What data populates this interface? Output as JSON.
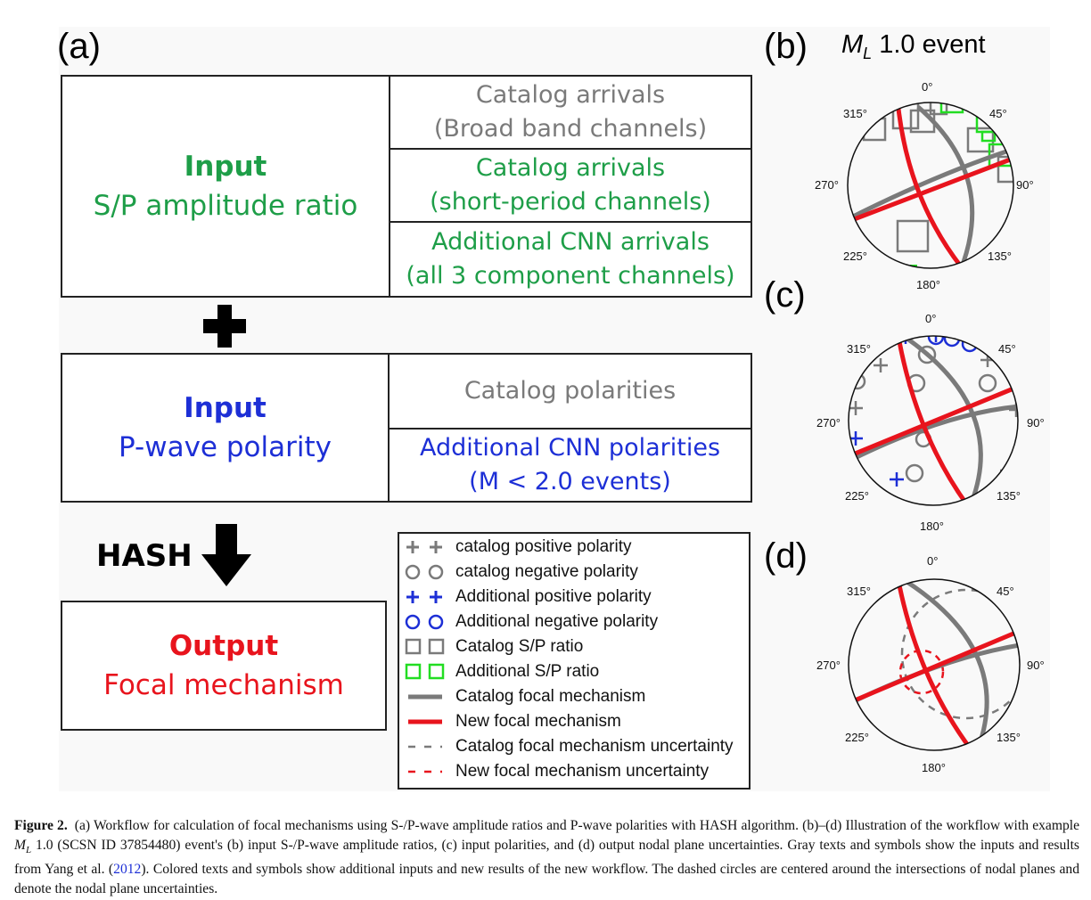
{
  "figure": {
    "panel_labels": {
      "a": "(a)",
      "b": "(b)",
      "c": "(c)",
      "d": "(d)"
    },
    "event_title": {
      "prefix": "M",
      "subscript": "L",
      "value": " 1.0 event"
    },
    "colors": {
      "catalog_gray": "#7a7a7a",
      "additional_green": "#1e9e48",
      "additional_blue": "#1d2fd6",
      "output_red": "#e8141d",
      "sp_green_symbol": "#22dd22"
    }
  },
  "workflow": {
    "amplitude_box": {
      "title": "Input",
      "subtitle": "S/P amplitude ratio",
      "rows": [
        {
          "line1": "Catalog arrivals",
          "line2": "(Broad band channels)"
        },
        {
          "line1": "Catalog arrivals",
          "line2": "(short-period channels)"
        },
        {
          "line1": "Additional CNN arrivals",
          "line2": "(all 3 component channels)"
        }
      ]
    },
    "plus_icon": "plus-icon",
    "polarity_box": {
      "title": "Input",
      "subtitle": "P-wave polarity",
      "rows": [
        {
          "line1": "Catalog polarities",
          "line2": ""
        },
        {
          "line1": "Additional CNN polarities",
          "line2": "(M < 2.0 events)"
        }
      ]
    },
    "hash_label": "HASH",
    "arrow_icon": "arrow-down-icon",
    "output_box": {
      "title": "Output",
      "subtitle": "Focal mechanism"
    }
  },
  "legend": {
    "items": [
      {
        "symbol": "gray-plus",
        "label": "catalog positive polarity"
      },
      {
        "symbol": "gray-circle",
        "label": "catalog negative polarity"
      },
      {
        "symbol": "blue-plus",
        "label": "Additional positive polarity"
      },
      {
        "symbol": "blue-circle",
        "label": "Additional negative polarity"
      },
      {
        "symbol": "gray-square",
        "label": "Catalog S/P ratio"
      },
      {
        "symbol": "green-square",
        "label": "Additional S/P ratio"
      },
      {
        "symbol": "gray-solid-line",
        "label": "Catalog focal mechanism"
      },
      {
        "symbol": "red-solid-line",
        "label": "New focal mechanism"
      },
      {
        "symbol": "gray-dashed-line",
        "label": "Catalog focal mechanism uncertainty"
      },
      {
        "symbol": "red-dashed-line",
        "label": "New focal mechanism uncertainty"
      }
    ]
  },
  "stereonet": {
    "azimuth_labels": {
      "n": "0°",
      "ne": "45°",
      "e": "90°",
      "se": "135°",
      "s": "180°",
      "sw": "225°",
      "w": "270°",
      "nw": "315°"
    }
  },
  "caption": {
    "label": "Figure 2.",
    "text_part1": "(a) Workflow for calculation of focal mechanisms using S-/P-wave amplitude ratios and P-wave polarities with HASH algorithm. (b)–(d) Illustration of the workflow with example ",
    "ml_prefix": "M",
    "ml_subscript": "L",
    "text_part2": " 1.0 (SCSN ID 37854480) event's (b) input S-/P-wave amplitude ratios, (c) input polarities, and (d) output nodal plane uncertainties. Gray texts and symbols show the inputs and results from Yang et al. (",
    "citation_year": "2012",
    "text_part3": "). Colored texts and symbols show additional inputs and new results of the new workflow. The dashed circles are centered around the intersections of nodal planes and denote the nodal plane uncertainties."
  }
}
